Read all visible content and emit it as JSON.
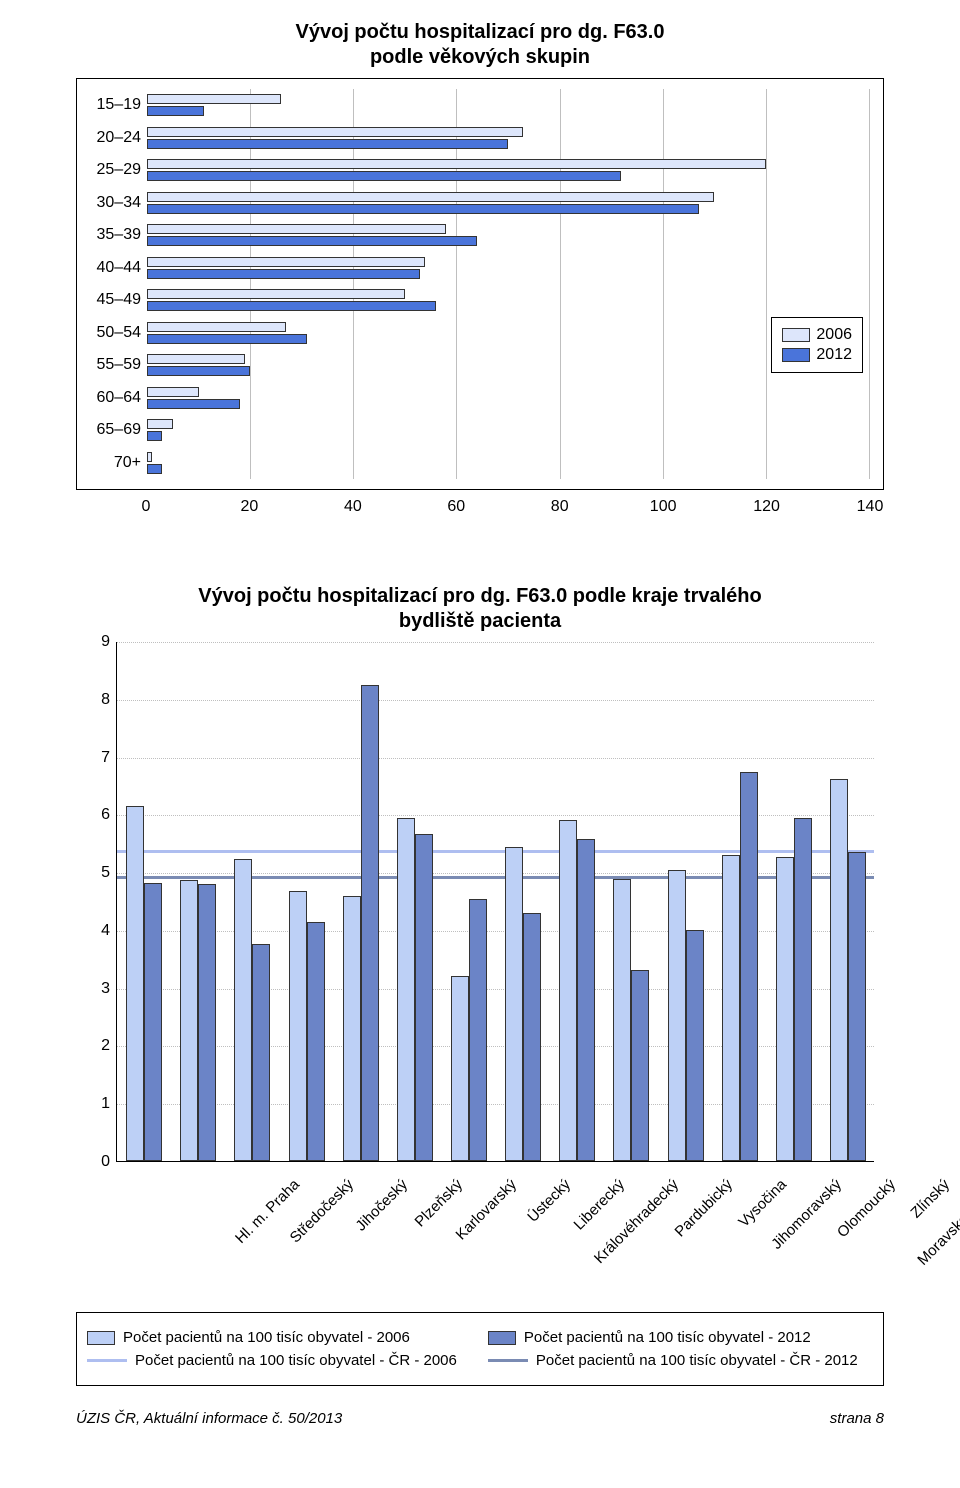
{
  "h_chart": {
    "type": "bar-horizontal",
    "title_line1": "Vývoj počtu hospitalizací pro dg. F63.0",
    "title_line2": "podle věkových skupin",
    "categories": [
      "15–19",
      "20–24",
      "25–29",
      "30–34",
      "35–39",
      "40–44",
      "45–49",
      "50–54",
      "55–59",
      "60–64",
      "65–69",
      "70+"
    ],
    "series": [
      {
        "name": "2006",
        "color": "#dde6fb",
        "values": [
          26,
          73,
          120,
          110,
          58,
          54,
          50,
          27,
          19,
          10,
          5,
          1
        ]
      },
      {
        "name": "2012",
        "color": "#4a74da",
        "values": [
          11,
          70,
          92,
          107,
          64,
          53,
          56,
          31,
          20,
          18,
          3,
          3
        ]
      }
    ],
    "xlim": [
      0,
      140
    ],
    "xtick_step": 20,
    "grid_color": "#bfbfbf",
    "legend_pos": "right-middle",
    "title_fontsize": 20,
    "tick_fontsize": 16
  },
  "v_chart": {
    "type": "bar",
    "title_line1": "Vývoj počtu hospitalizací pro dg. F63.0 podle kraje trvalého",
    "title_line2": "bydliště pacienta",
    "categories": [
      "Hl. m. Praha",
      "Středočeský",
      "Jihočeský",
      "Plzeňský",
      "Karlovarský",
      "Ústecký",
      "Liberecký",
      "Královéhradecký",
      "Pardubický",
      "Vysočina",
      "Jihomoravský",
      "Olomoucký",
      "Zlínský",
      "Moravskoslezský"
    ],
    "series": [
      {
        "name": "Počet pacientů na 100 tisíc obyvatel - 2006",
        "color": "#bdd0f6",
        "values": [
          6.14,
          4.86,
          5.22,
          4.68,
          4.58,
          5.94,
          3.2,
          5.44,
          5.9,
          4.88,
          5.04,
          5.3,
          5.26,
          6.62
        ]
      },
      {
        "name": "Počet pacientů na 100 tisíc obyvatel - 2012",
        "color": "#6b84c7",
        "values": [
          4.82,
          4.8,
          3.76,
          4.14,
          8.24,
          5.66,
          4.54,
          4.3,
          5.58,
          3.3,
          4.0,
          6.74,
          5.94,
          5.34
        ]
      }
    ],
    "ref_lines": [
      {
        "name": "Počet pacientů na 100 tisíc obyvatel - ČR - 2006",
        "color": "#aebef0",
        "value": 5.4
      },
      {
        "name": "Počet pacientů na 100 tisíc obyvatel - ČR - 2012",
        "color": "#7a8bb3",
        "value": 4.95
      }
    ],
    "ylim": [
      0,
      9
    ],
    "ytick_step": 1,
    "grid_color": "#bfbfbf",
    "title_fontsize": 20,
    "tick_fontsize": 16
  },
  "footer_left": "ÚZIS ČR, Aktuální informace č. 50/2013",
  "footer_right": "strana 8"
}
